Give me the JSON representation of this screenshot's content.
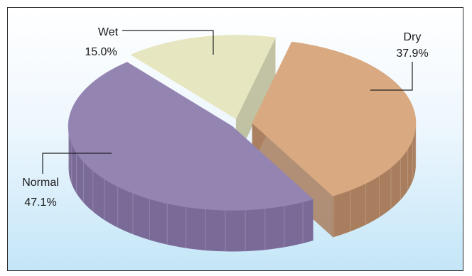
{
  "chart_data": {
    "type": "pie",
    "variant": "3d-exploded",
    "title": "",
    "slices": [
      {
        "name": "Dry",
        "value": 37.9,
        "label": "37.9%",
        "color": "#d9a981",
        "side_color": "#a87e5e"
      },
      {
        "name": "Normal",
        "value": 47.1,
        "label": "47.1%",
        "color": "#9484b2",
        "side_color": "#7a6a98"
      },
      {
        "name": "Wet",
        "value": 15.0,
        "label": "15.0%",
        "color": "#e6e6c0",
        "side_color": "#b8b894"
      }
    ]
  },
  "colors": {
    "background_top": "#ffffff",
    "background_bottom": "#c4e6f8",
    "border": "#2a2a2a",
    "leader_line": "#222222"
  }
}
